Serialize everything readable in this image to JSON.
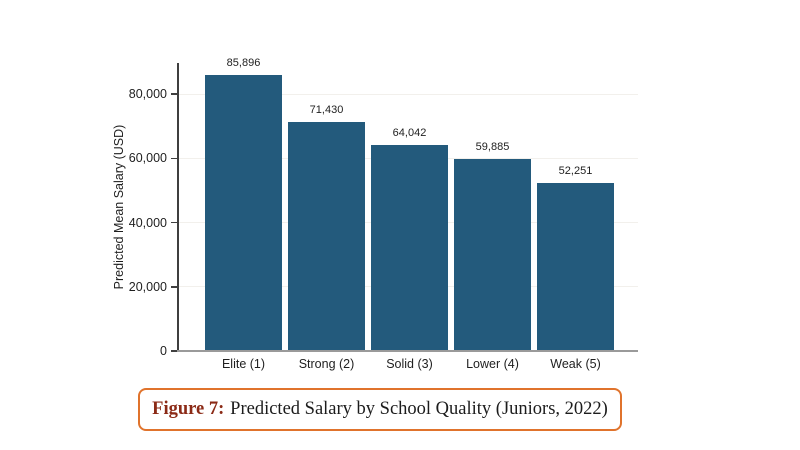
{
  "chart_data": {
    "type": "bar",
    "title": "",
    "categories": [
      "Elite (1)",
      "Strong (2)",
      "Solid (3)",
      "Lower (4)",
      "Weak (5)"
    ],
    "values": [
      85896,
      71430,
      64042,
      59885,
      52251
    ],
    "value_labels": [
      "85,896",
      "71,430",
      "64,042",
      "59,885",
      "52,251"
    ],
    "xlabel": "",
    "ylabel": "Predicted Mean Salary (USD)",
    "ylim": [
      0,
      80000
    ],
    "yticks": [
      0,
      20000,
      40000,
      60000,
      80000
    ],
    "ytick_labels": [
      "0",
      "20,000",
      "40,000",
      "60,000",
      "80,000"
    ],
    "bar_color": "#235A7C",
    "grid": "faint horizontal gridlines at ticks",
    "legend": "none"
  },
  "caption": {
    "label": "Figure 7:",
    "text": "Predicted Salary by School Quality (Juniors, 2022)",
    "label_color": "#8B2A16",
    "border_color": "#E0732C"
  }
}
